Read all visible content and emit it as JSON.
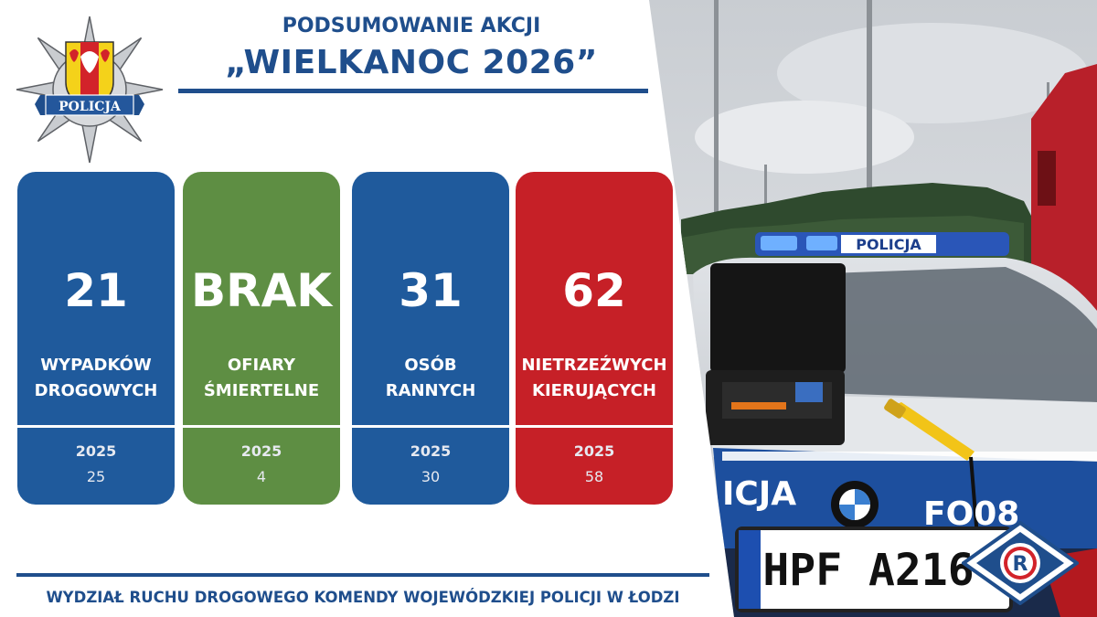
{
  "header": {
    "line1": "PODSUMOWANIE AKCJI",
    "line2": "„WIELKANOC 2026”"
  },
  "logo": {
    "text": "POLICJA",
    "icon": "police-star-emblem"
  },
  "cards": [
    {
      "value": "21",
      "label_line1": "WYPADKÓW",
      "label_line2": "DROGOWYCH",
      "year": "2025",
      "prev": "25",
      "color": "#1f5a9c"
    },
    {
      "value": "BRAK",
      "label_line1": "OFIARY",
      "label_line2": "ŚMIERTELNE",
      "year": "2025",
      "prev": "4",
      "color": "#5e8e43"
    },
    {
      "value": "31",
      "label_line1": "OSÓB",
      "label_line2": "RANNYCH",
      "year": "2025",
      "prev": "30",
      "color": "#1f5a9c"
    },
    {
      "value": "62",
      "label_line1": "NIETRZEŹWYCH",
      "label_line2": "KIERUJĄCYCH",
      "year": "2025",
      "prev": "58",
      "color": "#c62027"
    }
  ],
  "footer": {
    "text": "WYDZIAŁ RUCHU DROGOWEGO KOMENDY WOJEWÓDZKIEJ POLICJI W ŁODZI"
  },
  "photo": {
    "lightbar_text": "POLICJA",
    "door_text": "ICJA",
    "car_number": "FO08",
    "plate": "HPF A216",
    "badge_letter": "R"
  }
}
